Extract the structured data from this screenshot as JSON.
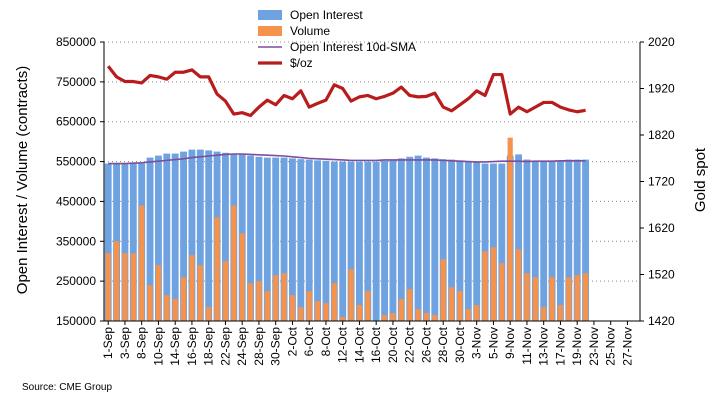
{
  "chart_data": {
    "type": "bar",
    "source": "Source: CME Group",
    "legend": {
      "placement": "top-center",
      "items": [
        {
          "label": "Open Interest",
          "kind": "bar",
          "color": "#6fa2e0"
        },
        {
          "label": "Volume",
          "kind": "bar",
          "color": "#f5924b"
        },
        {
          "label": "Open Interest 10d-SMA",
          "kind": "line",
          "color": "#7b4f9d"
        },
        {
          "label": "$/oz",
          "kind": "line",
          "color": "#b81c1c"
        }
      ]
    },
    "y_left": {
      "label": "Open Interest / Volume (contracts)",
      "min": 150000,
      "max": 850000,
      "ticks": [
        "850000",
        "750000",
        "650000",
        "550000",
        "450000",
        "350000",
        "250000",
        "150000"
      ],
      "tick_values": [
        850000,
        750000,
        650000,
        550000,
        450000,
        350000,
        250000,
        150000
      ]
    },
    "y_right": {
      "label": "Gold spot",
      "min": 1420,
      "max": 2020,
      "ticks": [
        "2020",
        "1920",
        "1820",
        "1720",
        "1620",
        "1520",
        "1420"
      ],
      "tick_values": [
        2020,
        1920,
        1820,
        1720,
        1620,
        1520,
        1420
      ]
    },
    "x_tick_labels": [
      "1-Sep",
      "3-Sep",
      "8-Sep",
      "10-Sep",
      "14-Sep",
      "16-Sep",
      "18-Sep",
      "22-Sep",
      "24-Sep",
      "28-Sep",
      "30-Sep",
      "2-Oct",
      "6-Oct",
      "8-Oct",
      "12-Oct",
      "14-Oct",
      "16-Oct",
      "20-Oct",
      "22-Oct",
      "26-Oct",
      "28-Oct",
      "30-Oct",
      "3-Nov",
      "5-Nov",
      "9-Nov",
      "11-Nov",
      "13-Nov",
      "17-Nov",
      "19-Nov",
      "23-Nov",
      "25-Nov",
      "27-Nov"
    ],
    "n_slots": 64,
    "n_data": 58,
    "grid": {
      "horizontal": true,
      "style": "dotted"
    },
    "series": [
      {
        "name": "Open Interest",
        "kind": "bar",
        "color": "#6fa2e0",
        "values": [
          545000,
          545000,
          545000,
          545000,
          545000,
          560000,
          565000,
          570000,
          570000,
          575000,
          580000,
          580000,
          578000,
          575000,
          572000,
          570000,
          568000,
          565000,
          562000,
          560000,
          560000,
          560000,
          558000,
          556000,
          555000,
          553000,
          552000,
          550000,
          550000,
          550000,
          550000,
          550000,
          550000,
          552000,
          555000,
          558000,
          562000,
          565000,
          560000,
          558000,
          556000,
          555000,
          553000,
          550000,
          548000,
          545000,
          545000,
          545000,
          565000,
          568000,
          555000,
          550000,
          550000,
          552000,
          552000,
          555000,
          555000,
          555000
        ]
      },
      {
        "name": "Volume",
        "kind": "bar",
        "color": "#f5924b",
        "values": [
          320000,
          350000,
          320000,
          320000,
          440000,
          240000,
          290000,
          215000,
          205000,
          260000,
          315000,
          290000,
          185000,
          410000,
          300000,
          440000,
          370000,
          245000,
          250000,
          225000,
          265000,
          270000,
          215000,
          185000,
          225000,
          200000,
          195000,
          245000,
          160000,
          280000,
          190000,
          225000,
          150000,
          165000,
          170000,
          205000,
          230000,
          180000,
          170000,
          165000,
          305000,
          235000,
          225000,
          180000,
          190000,
          325000,
          335000,
          295000,
          610000,
          330000,
          270000,
          260000,
          185000,
          260000,
          190000,
          260000,
          265000,
          270000
        ]
      },
      {
        "name": "Open Interest 10d-SMA",
        "kind": "line",
        "color": "#7b4f9d",
        "values": [
          545000,
          545000,
          545000,
          546000,
          547000,
          549000,
          551000,
          553000,
          555000,
          557000,
          560000,
          562000,
          564000,
          566000,
          568000,
          569000,
          569000,
          568000,
          567000,
          566000,
          565000,
          564000,
          562000,
          560000,
          558000,
          557000,
          556000,
          555000,
          554000,
          553000,
          553000,
          553000,
          553000,
          554000,
          554000,
          554000,
          554000,
          554000,
          554000,
          554000,
          553000,
          552000,
          551000,
          550000,
          549000,
          549000,
          550000,
          551000,
          551000,
          551000,
          550000,
          551000,
          551000,
          551000,
          552000,
          552000,
          552000,
          552000
        ]
      },
      {
        "name": "$/oz",
        "kind": "line",
        "color": "#b81c1c",
        "values": [
          1968,
          1945,
          1935,
          1935,
          1932,
          1948,
          1945,
          1940,
          1955,
          1955,
          1960,
          1945,
          1945,
          1908,
          1893,
          1865,
          1868,
          1862,
          1880,
          1895,
          1885,
          1905,
          1898,
          1915,
          1880,
          1888,
          1895,
          1928,
          1920,
          1893,
          1902,
          1905,
          1898,
          1903,
          1910,
          1923,
          1905,
          1902,
          1903,
          1910,
          1880,
          1872,
          1885,
          1898,
          1915,
          1905,
          1950,
          1950,
          1865,
          1880,
          1870,
          1880,
          1890,
          1890,
          1880,
          1874,
          1870,
          1873
        ]
      }
    ]
  }
}
